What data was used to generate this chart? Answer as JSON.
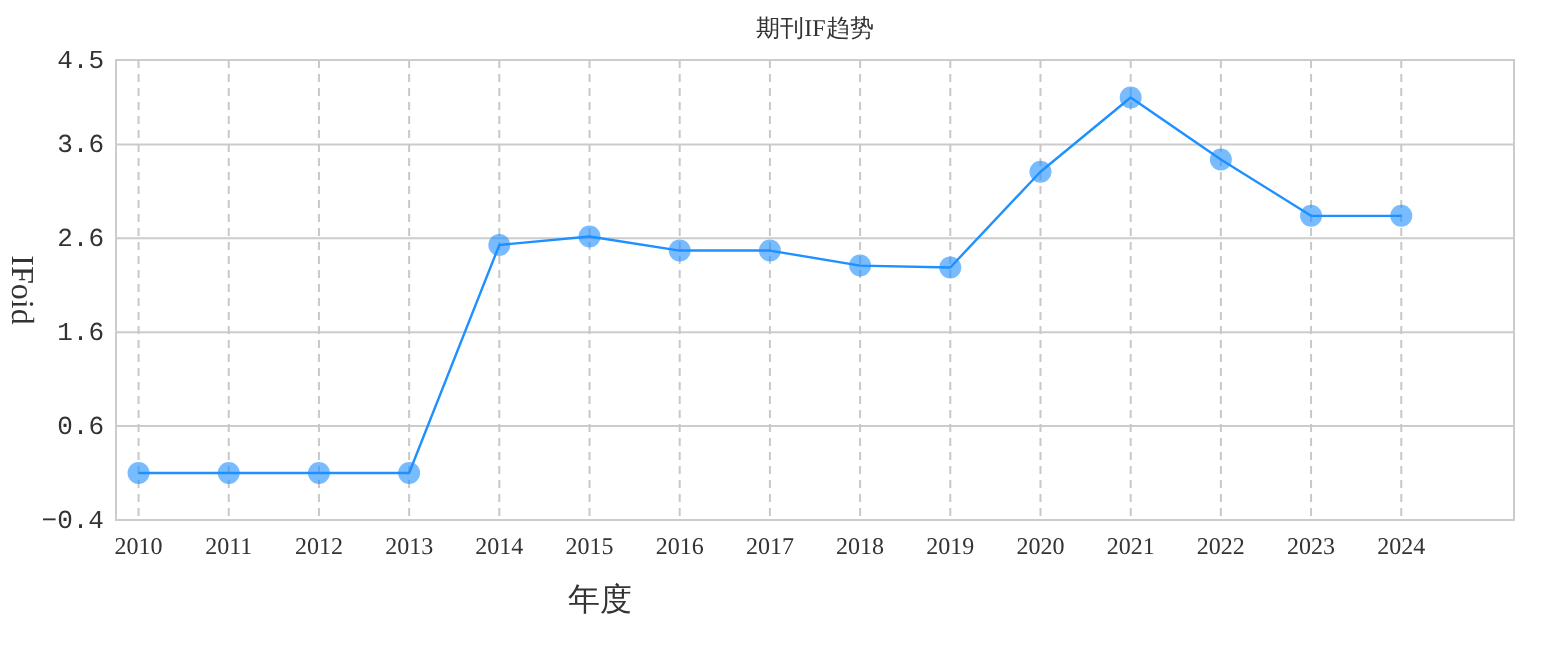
{
  "chart_data": {
    "type": "line",
    "title": "期刊IF趋势",
    "xlabel": "年度",
    "ylabel": "IFoid",
    "categories": [
      "2010",
      "2011",
      "2012",
      "2013",
      "2014",
      "2015",
      "2016",
      "2017",
      "2018",
      "2019",
      "2020",
      "2021",
      "2022",
      "2023",
      "2024"
    ],
    "series": [
      {
        "color": "#1e90ff",
        "values": [
          0.1,
          0.1,
          0.1,
          0.1,
          2.53,
          2.62,
          2.47,
          2.47,
          2.31,
          2.29,
          3.31,
          4.1,
          3.44,
          2.84,
          2.84
        ]
      }
    ],
    "ylim": [
      -0.4,
      4.5
    ],
    "yticks": [
      -0.4,
      0.6,
      1.6,
      2.6,
      3.6,
      4.5
    ],
    "grid": true,
    "marker": "circle",
    "line_style": "solid"
  }
}
